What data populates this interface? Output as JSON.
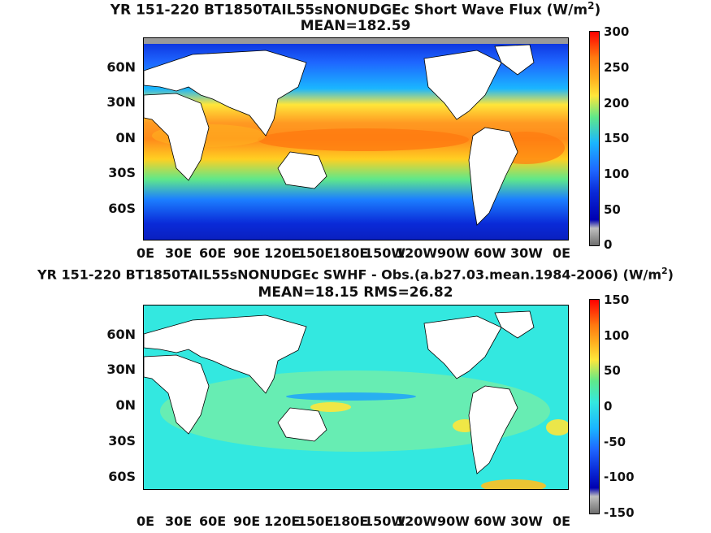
{
  "panels": [
    {
      "title_line1": "YR 151-220 BT1850TAIL55sNONUDGEc  Short Wave Flux (W/m",
      "title_sup": "2",
      "title_close": ")",
      "title_line2": "MEAN=182.59",
      "lat_labels": [
        "60N",
        "30N",
        "0N",
        "30S",
        "60S"
      ],
      "lon_labels": [
        "0E",
        "30E",
        "60E",
        "90E",
        "120E",
        "150E",
        "180E",
        "150W",
        "120W",
        "90W",
        "60W",
        "30W",
        "0E"
      ],
      "colorbar_labels": [
        "300",
        "250",
        "200",
        "150",
        "100",
        "50",
        "0"
      ]
    },
    {
      "title_line1": "YR 151-220 BT1850TAIL55sNONUDGEc SWHF - Obs.(a.b27.03.mean.1984-2006) (W/m",
      "title_sup": "2",
      "title_close": ")",
      "title_line2": "MEAN=18.15 RMS=26.82",
      "lat_labels": [
        "60N",
        "30N",
        "0N",
        "30S",
        "60S"
      ],
      "lon_labels": [
        "0E",
        "30E",
        "60E",
        "90E",
        "120E",
        "150E",
        "180E",
        "150W",
        "120W",
        "90W",
        "60W",
        "30W",
        "0E"
      ],
      "colorbar_labels": [
        "150",
        "100",
        "50",
        "0",
        "-50",
        "-100",
        "-150"
      ]
    }
  ],
  "colors": {
    "land": "#ffffff",
    "scale_low": "#6e6e6e",
    "scale_high": "#ff0000"
  }
}
